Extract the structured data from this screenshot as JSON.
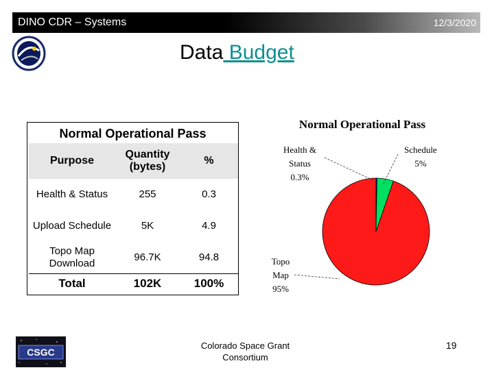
{
  "header": {
    "left_title": "DINO CDR – Systems",
    "date": "12/3/2020"
  },
  "slide": {
    "title_plain": "Data",
    "title_underlined": " Budget"
  },
  "table": {
    "title": "Normal Operational Pass",
    "columns": [
      "Purpose",
      "Quantity (bytes)",
      "%"
    ],
    "rows": [
      [
        "Health & Status",
        "255",
        "0.3"
      ],
      [
        "Upload Schedule",
        "5K",
        "4.9"
      ],
      [
        "Topo Map Download",
        "96.7K",
        "94.8"
      ],
      [
        "Total",
        "102K",
        "100%"
      ]
    ]
  },
  "chart_data": {
    "type": "pie",
    "title": "Normal Operational Pass",
    "slices": [
      {
        "name": "Health & Status",
        "label_lines": [
          "Health &",
          "Status",
          "0.3%"
        ],
        "value": 0.3,
        "color": "#1a1aff"
      },
      {
        "name": "Schedule",
        "label_lines": [
          "Schedule",
          "5%"
        ],
        "value": 5,
        "color": "#00e060"
      },
      {
        "name": "Topo Map",
        "label_lines": [
          "Topo",
          "Map",
          "95%"
        ],
        "value": 95,
        "color": "#ff1a1a"
      }
    ]
  },
  "footer": {
    "logo_text": "CSGC",
    "org": "Colorado Space Grant Consortium",
    "page_number": "19"
  },
  "colors": {
    "title_accent": "#0f8f8f",
    "header_bg": "#000000"
  }
}
